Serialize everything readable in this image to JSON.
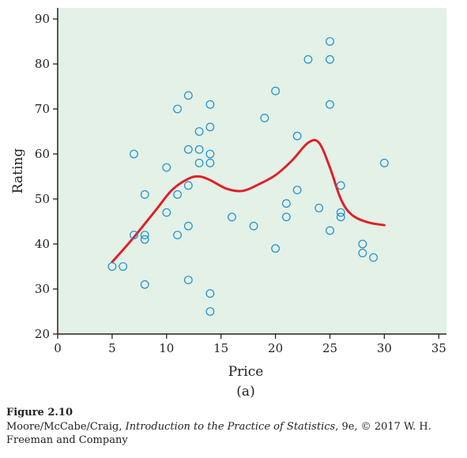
{
  "chart_data": {
    "type": "scatter",
    "xlabel": "Price",
    "ylabel": "Rating",
    "xlim": [
      0,
      36
    ],
    "ylim": [
      20,
      92
    ],
    "xticks": [
      0,
      5,
      10,
      15,
      20,
      25,
      30,
      35
    ],
    "yticks": [
      20,
      30,
      40,
      50,
      60,
      70,
      80,
      90
    ],
    "sublabel": "(a)",
    "grid": false,
    "plot_background": "#e3f1e6",
    "point_color": "#1b8fd0",
    "curve_color": "#e0202a",
    "points": [
      [
        5,
        35
      ],
      [
        6,
        35
      ],
      [
        7,
        42
      ],
      [
        7,
        60
      ],
      [
        8,
        31
      ],
      [
        8,
        41
      ],
      [
        8,
        42
      ],
      [
        8,
        51
      ],
      [
        10,
        47
      ],
      [
        10,
        57
      ],
      [
        11,
        42
      ],
      [
        11,
        51
      ],
      [
        11,
        70
      ],
      [
        12,
        32
      ],
      [
        12,
        44
      ],
      [
        12,
        53
      ],
      [
        12,
        61
      ],
      [
        12,
        73
      ],
      [
        13,
        58
      ],
      [
        13,
        61
      ],
      [
        13,
        65
      ],
      [
        14,
        25
      ],
      [
        14,
        29
      ],
      [
        14,
        58
      ],
      [
        14,
        60
      ],
      [
        14,
        66
      ],
      [
        14,
        71
      ],
      [
        16,
        46
      ],
      [
        18,
        44
      ],
      [
        19,
        68
      ],
      [
        20,
        39
      ],
      [
        20,
        74
      ],
      [
        21,
        46
      ],
      [
        21,
        49
      ],
      [
        22,
        52
      ],
      [
        22,
        64
      ],
      [
        23,
        81
      ],
      [
        24,
        48
      ],
      [
        25,
        43
      ],
      [
        25,
        71
      ],
      [
        25,
        81
      ],
      [
        25,
        85
      ],
      [
        26,
        46
      ],
      [
        26,
        47
      ],
      [
        26,
        53
      ],
      [
        28,
        38
      ],
      [
        28,
        40
      ],
      [
        29,
        37
      ],
      [
        30,
        58
      ]
    ],
    "smooth_curve": [
      [
        5,
        36
      ],
      [
        7,
        41.5
      ],
      [
        9,
        47.5
      ],
      [
        10.5,
        52
      ],
      [
        12,
        54.5
      ],
      [
        13,
        55
      ],
      [
        14,
        54.2
      ],
      [
        15.5,
        52.3
      ],
      [
        17,
        51.8
      ],
      [
        18.5,
        53.3
      ],
      [
        20,
        55.3
      ],
      [
        21.5,
        58.5
      ],
      [
        23,
        62.5
      ],
      [
        24,
        62.5
      ],
      [
        25,
        57
      ],
      [
        26,
        50
      ],
      [
        27,
        46.5
      ],
      [
        28.5,
        44.8
      ],
      [
        30,
        44.2
      ]
    ]
  },
  "caption": {
    "figure_label": "Figure 2.10",
    "credit_authors": "Moore/McCabe/Craig, ",
    "credit_book": "Introduction to the Practice of Statistics",
    "credit_rest": ", 9e, © 2017 W. H. Freeman and Company"
  }
}
